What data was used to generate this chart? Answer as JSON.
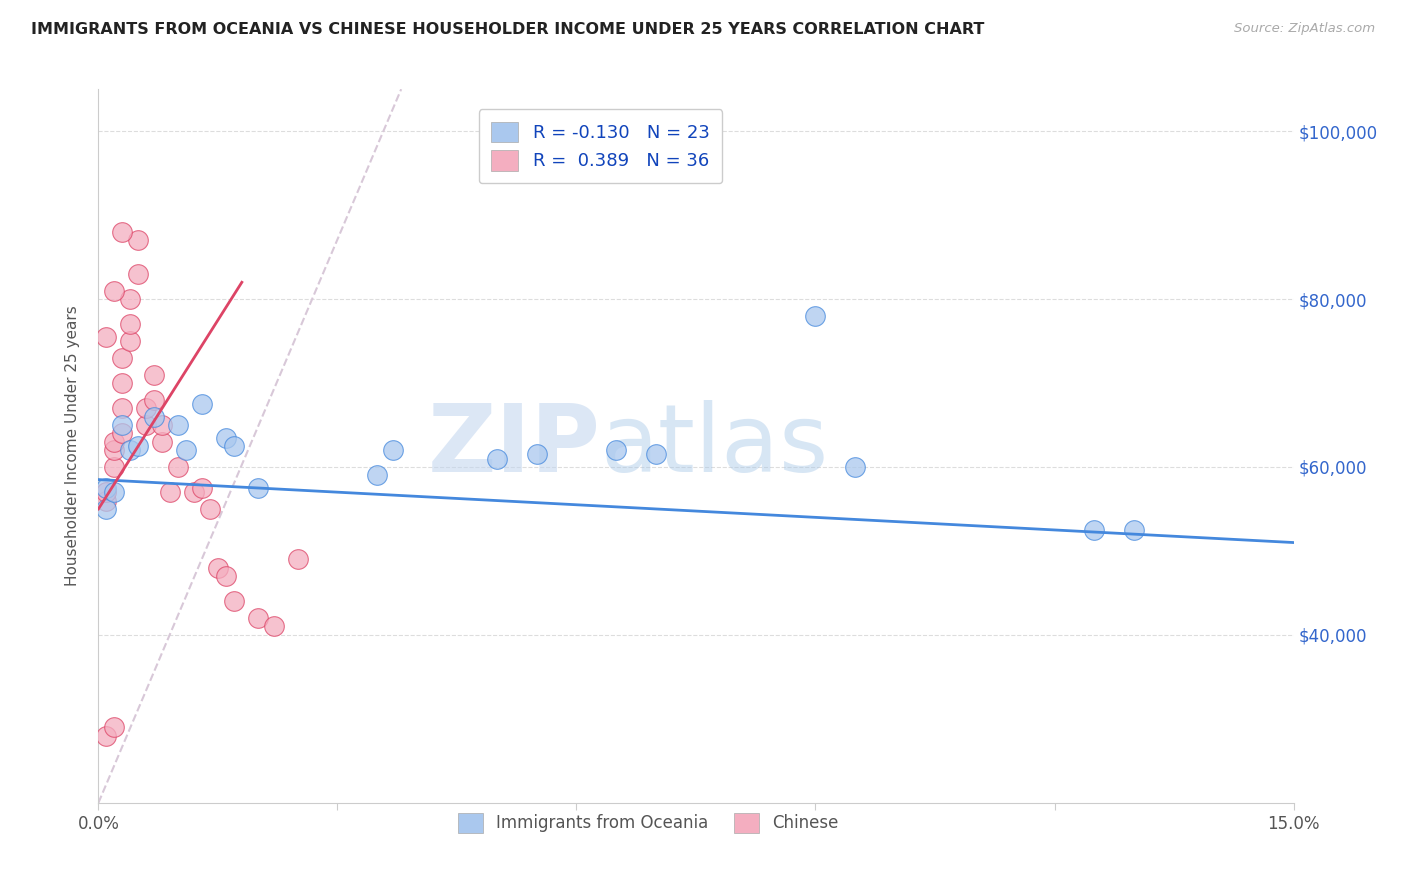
{
  "title": "IMMIGRANTS FROM OCEANIA VS CHINESE HOUSEHOLDER INCOME UNDER 25 YEARS CORRELATION CHART",
  "source": "Source: ZipAtlas.com",
  "ylabel": "Householder Income Under 25 years",
  "legend_label1": "Immigrants from Oceania",
  "legend_label2": "Chinese",
  "R1": "-0.130",
  "N1": "23",
  "R2": "0.389",
  "N2": "36",
  "watermark_zip": "ZIP",
  "watermark_atlas": "atlas",
  "xmin": 0.0,
  "xmax": 0.15,
  "ymin": 20000,
  "ymax": 105000,
  "yticks": [
    40000,
    60000,
    80000,
    100000
  ],
  "ytick_labels": [
    "$40,000",
    "$60,000",
    "$80,000",
    "$100,000"
  ],
  "color_blue": "#aac8ee",
  "color_pink": "#f4aec0",
  "line_blue": "#4488dd",
  "line_pink": "#dd4466",
  "line_diagonal_color": "#d8c8d8",
  "scatter_blue": [
    [
      0.001,
      57500
    ],
    [
      0.001,
      55000
    ],
    [
      0.002,
      57000
    ],
    [
      0.003,
      65000
    ],
    [
      0.004,
      62000
    ],
    [
      0.005,
      62500
    ],
    [
      0.007,
      66000
    ],
    [
      0.01,
      65000
    ],
    [
      0.011,
      62000
    ],
    [
      0.013,
      67500
    ],
    [
      0.016,
      63500
    ],
    [
      0.017,
      62500
    ],
    [
      0.02,
      57500
    ],
    [
      0.035,
      59000
    ],
    [
      0.037,
      62000
    ],
    [
      0.05,
      61000
    ],
    [
      0.055,
      61500
    ],
    [
      0.065,
      62000
    ],
    [
      0.07,
      61500
    ],
    [
      0.09,
      78000
    ],
    [
      0.095,
      60000
    ],
    [
      0.125,
      52500
    ],
    [
      0.13,
      52500
    ]
  ],
  "scatter_pink": [
    [
      0.001,
      28000
    ],
    [
      0.001,
      56000
    ],
    [
      0.001,
      57000
    ],
    [
      0.002,
      60000
    ],
    [
      0.002,
      62000
    ],
    [
      0.002,
      63000
    ],
    [
      0.003,
      64000
    ],
    [
      0.003,
      67000
    ],
    [
      0.003,
      70000
    ],
    [
      0.003,
      73000
    ],
    [
      0.004,
      75000
    ],
    [
      0.004,
      77000
    ],
    [
      0.004,
      80000
    ],
    [
      0.005,
      83000
    ],
    [
      0.005,
      87000
    ],
    [
      0.006,
      65000
    ],
    [
      0.006,
      67000
    ],
    [
      0.007,
      68000
    ],
    [
      0.007,
      71000
    ],
    [
      0.008,
      63000
    ],
    [
      0.008,
      65000
    ],
    [
      0.009,
      57000
    ],
    [
      0.01,
      60000
    ],
    [
      0.012,
      57000
    ],
    [
      0.013,
      57500
    ],
    [
      0.014,
      55000
    ],
    [
      0.015,
      48000
    ],
    [
      0.016,
      47000
    ],
    [
      0.017,
      44000
    ],
    [
      0.02,
      42000
    ],
    [
      0.002,
      29000
    ],
    [
      0.022,
      41000
    ],
    [
      0.025,
      49000
    ],
    [
      0.001,
      75500
    ],
    [
      0.002,
      81000
    ],
    [
      0.003,
      88000
    ]
  ],
  "blue_line_x": [
    0.0,
    0.15
  ],
  "blue_line_y": [
    58500,
    51000
  ],
  "pink_line_x": [
    0.0,
    0.018
  ],
  "pink_line_y": [
    55000,
    82000
  ],
  "diag_line_x": [
    0.0,
    0.038
  ],
  "diag_line_y": [
    20000,
    105000
  ]
}
